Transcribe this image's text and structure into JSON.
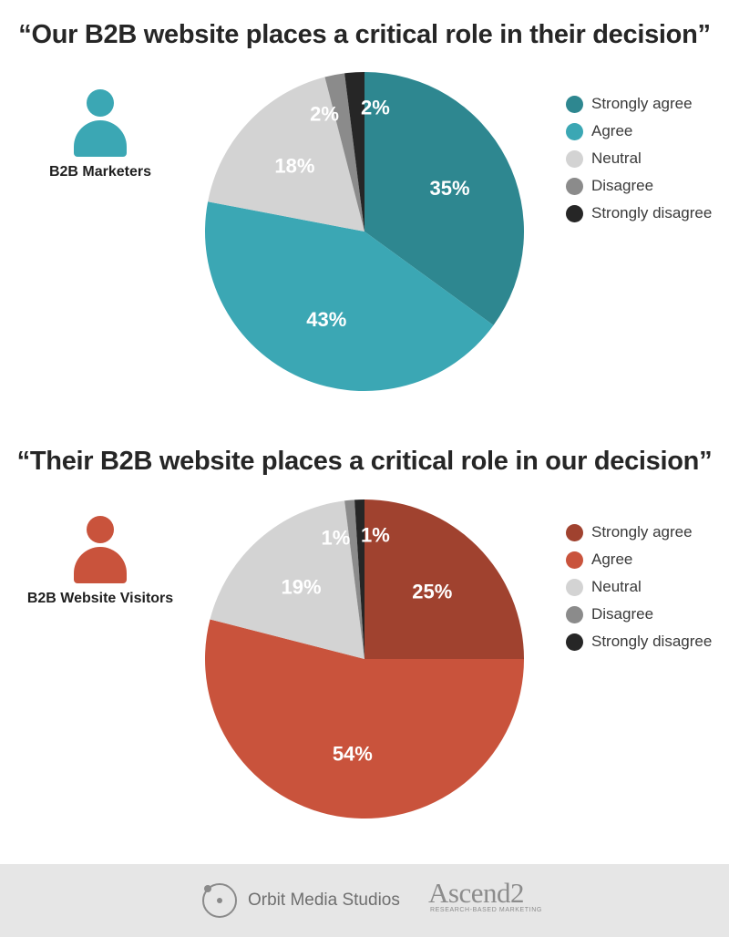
{
  "charts": [
    {
      "title": "“Our B2B website places a critical role in their decision”",
      "audience": "B2B Marketers",
      "icon": "person-icon",
      "icon_color": "#3ba7b4",
      "legend": [
        "Strongly agree",
        "Agree",
        "Neutral",
        "Disagree",
        "Strongly disagree"
      ]
    },
    {
      "title": "“Their B2B website places a critical role in our decision”",
      "audience": "B2B Website Visitors",
      "icon": "person-icon",
      "icon_color": "#c9533c",
      "legend": [
        "Strongly agree",
        "Agree",
        "Neutral",
        "Disagree",
        "Strongly disagree"
      ]
    }
  ],
  "chart_data": [
    {
      "type": "pie",
      "title": "“Our B2B website places a critical role in their decision”",
      "categories": [
        "Strongly agree",
        "Agree",
        "Neutral",
        "Disagree",
        "Strongly disagree"
      ],
      "values": [
        35,
        43,
        18,
        2,
        2
      ],
      "labels": [
        "35%",
        "43%",
        "18%",
        "2%",
        "2%"
      ],
      "colors": [
        "#2e8790",
        "#3ba7b4",
        "#d3d3d3",
        "#8b8b8b",
        "#262626"
      ],
      "legend_position": "right"
    },
    {
      "type": "pie",
      "title": "“Their B2B website places a critical role in our decision”",
      "categories": [
        "Strongly agree",
        "Agree",
        "Neutral",
        "Disagree",
        "Strongly disagree"
      ],
      "values": [
        25,
        54,
        19,
        1,
        1
      ],
      "labels": [
        "25%",
        "54%",
        "19%",
        "1%",
        "1%"
      ],
      "colors": [
        "#a0422f",
        "#c9533c",
        "#d3d3d3",
        "#8b8b8b",
        "#262626"
      ],
      "legend_position": "right"
    }
  ],
  "footer": {
    "orbit_logo_text": "Orbit Media Studios",
    "ascend_logo_text": "Ascend2",
    "ascend_tagline": "RESEARCH-BASED MARKETING"
  }
}
